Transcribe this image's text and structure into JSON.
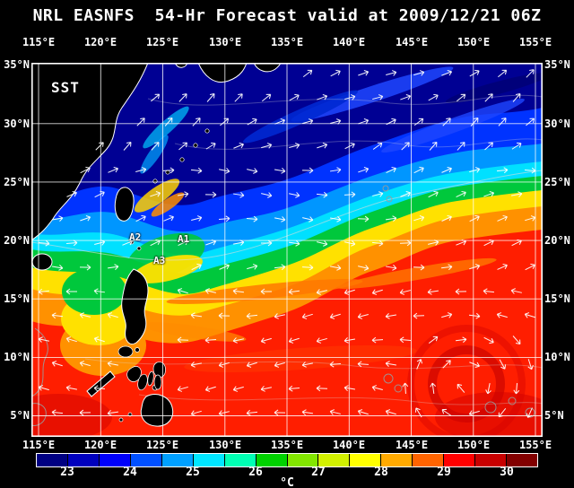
{
  "title": "NRL EASNFS  54-Hr Forecast valid at 2009/12/21 06Z",
  "map": {
    "sst_label": "SST",
    "x_axis": {
      "labels": [
        "115°E",
        "120°E",
        "125°E",
        "130°E",
        "135°E",
        "140°E",
        "145°E",
        "150°E",
        "155°E"
      ]
    },
    "y_axis": {
      "labels": [
        "35°N",
        "30°N",
        "25°N",
        "20°N",
        "15°N",
        "10°N",
        "5°N"
      ]
    },
    "annotations": [
      {
        "label": "A1"
      },
      {
        "label": "A2"
      },
      {
        "label": "A3"
      }
    ]
  },
  "colorbar": {
    "unit": "°C",
    "tick_labels": [
      "23",
      "24",
      "25",
      "26",
      "27",
      "28",
      "29",
      "30"
    ],
    "range_c": [
      22.5,
      30.5
    ],
    "segment_colors": [
      "#000082",
      "#0000be",
      "#0000fa",
      "#0050ff",
      "#00a0ff",
      "#00e6ff",
      "#00ffb4",
      "#00d200",
      "#82e600",
      "#d2f000",
      "#ffff00",
      "#ffaa00",
      "#ff6400",
      "#ff0000",
      "#c80000",
      "#820000"
    ]
  },
  "field_colors": {
    "deep_blue_north": "#000093",
    "front_yellow": "#ffe100",
    "tropical_red": "#ff1e00"
  }
}
